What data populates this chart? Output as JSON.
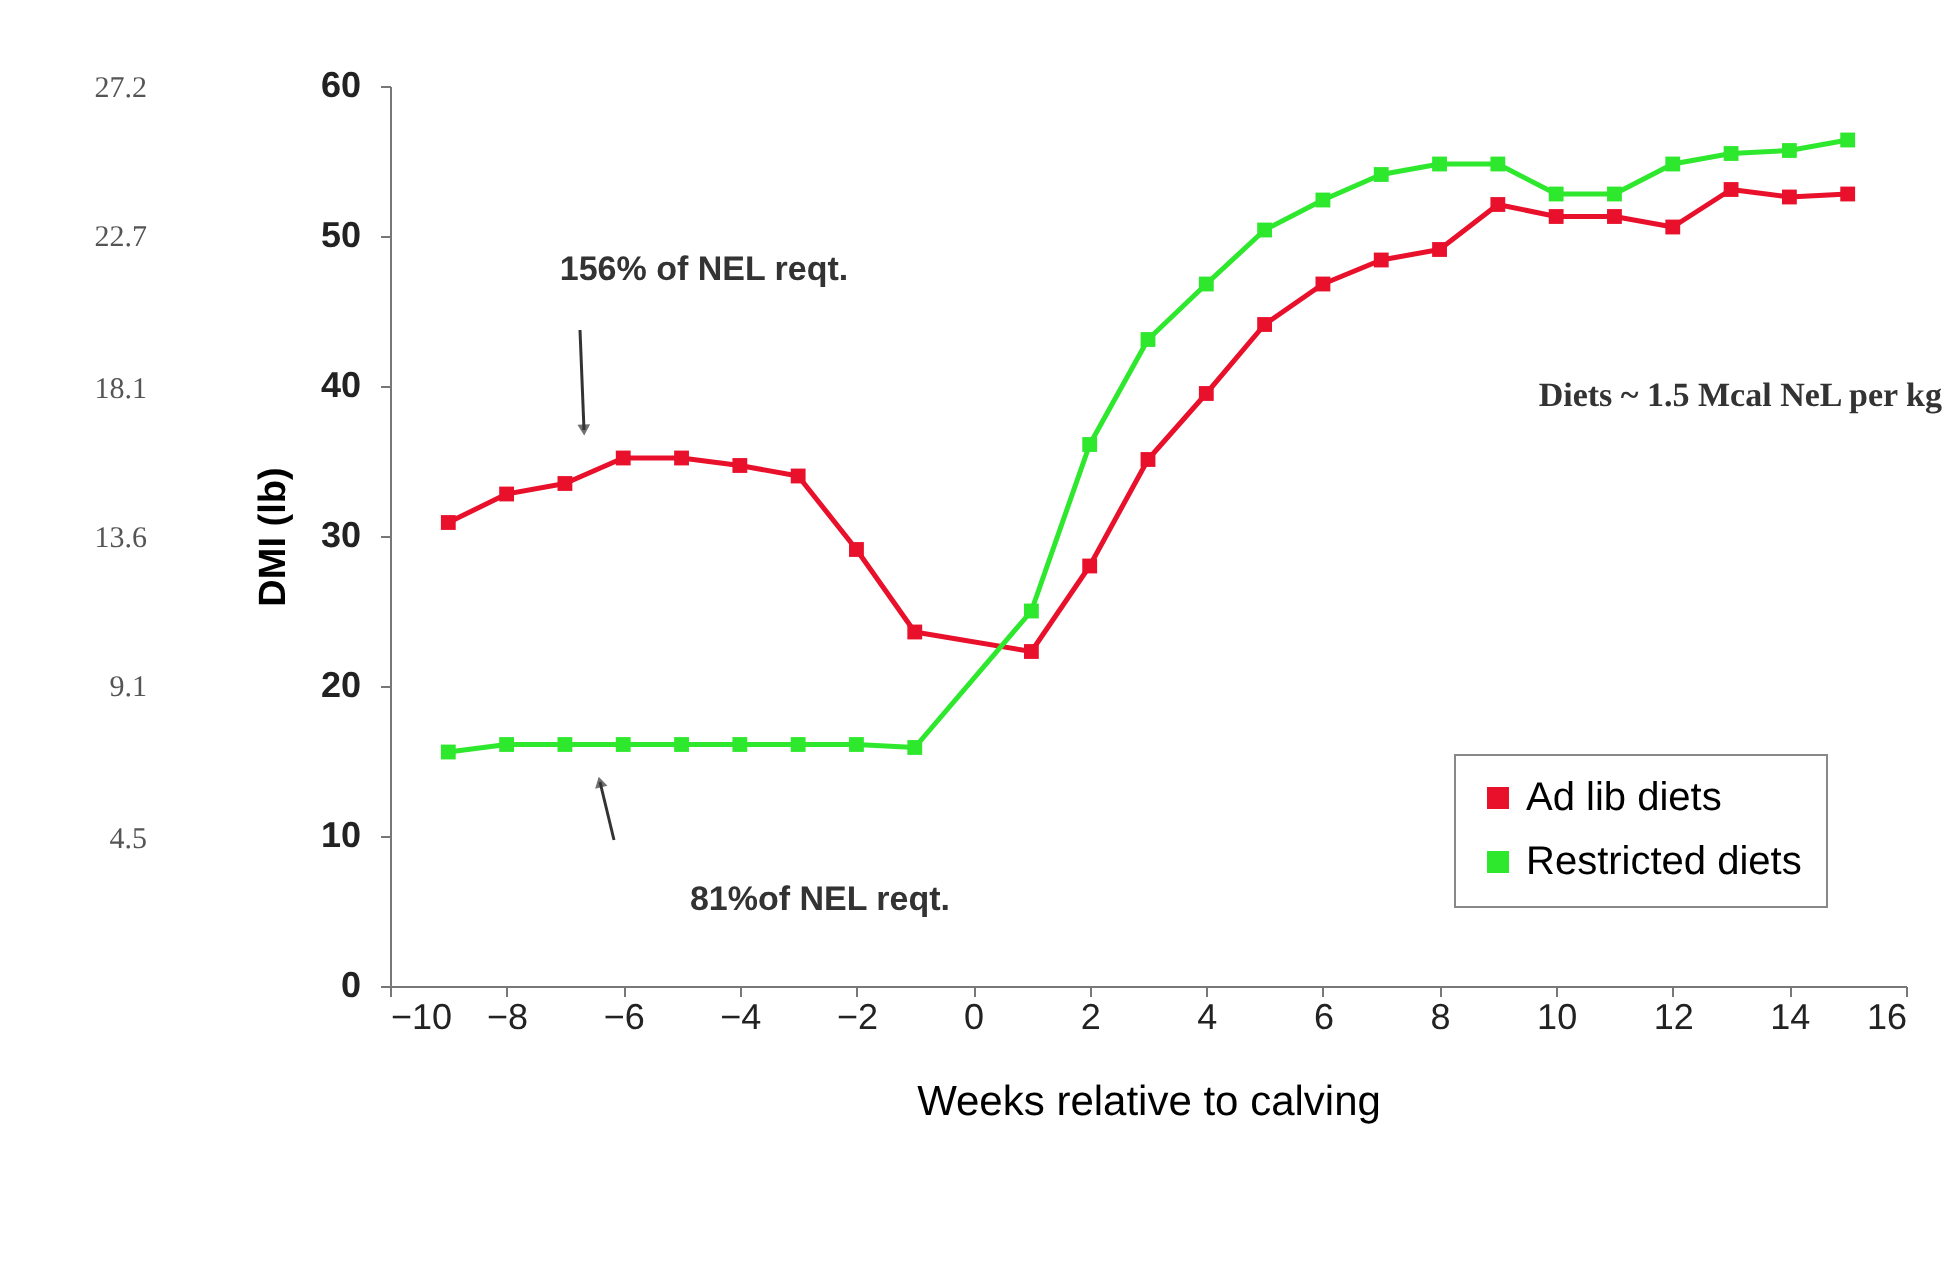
{
  "chart_data": {
    "type": "line",
    "xlabel": "Weeks relative to calving",
    "ylabel": "DMI (lb)",
    "x": [
      -9,
      -8,
      -7,
      -6,
      -5,
      -4,
      -3,
      -2,
      -1,
      1,
      2,
      3,
      4,
      5,
      6,
      7,
      8,
      9,
      10,
      11,
      12,
      13,
      14,
      15
    ],
    "series": [
      {
        "name": "Ad lib diets",
        "color": "#e8102a",
        "values": [
          30.9,
          32.8,
          33.5,
          35.2,
          35.2,
          34.7,
          34,
          29.1,
          23.6,
          22.3,
          28,
          35.1,
          39.5,
          44.1,
          46.8,
          48.4,
          49.1,
          52.1,
          51.3,
          51.3,
          50.6,
          53.1,
          52.6,
          52.8
        ]
      },
      {
        "name": "Restricted diets",
        "color": "#2ee82e",
        "values": [
          15.6,
          16.1,
          16.1,
          16.1,
          16.1,
          16.1,
          16.1,
          16.1,
          15.9,
          25,
          36.1,
          43.1,
          46.8,
          50.4,
          52.4,
          54.1,
          54.8,
          54.8,
          52.8,
          52.8,
          54.8,
          55.5,
          55.7,
          56.4
        ]
      }
    ],
    "xlim": [
      -10,
      16
    ],
    "xticks": [
      -10,
      -8,
      -6,
      -4,
      -2,
      0,
      2,
      4,
      6,
      8,
      10,
      12,
      14,
      16
    ],
    "ylim": [
      0,
      60
    ],
    "yticks": [
      0,
      10,
      20,
      30,
      40,
      50,
      60
    ],
    "y2lim": [
      0,
      27.2
    ],
    "y2ticks": [
      {
        "value": 4.5,
        "label": "4.5"
      },
      {
        "value": 9.1,
        "label": "9.1"
      },
      {
        "value": 13.6,
        "label": "13.6"
      },
      {
        "value": 18.1,
        "label": "18.1"
      },
      {
        "value": 22.7,
        "label": "22.7"
      },
      {
        "value": 27.2,
        "label": "27.2"
      }
    ],
    "annotations": [
      "156% of NEL reqt.",
      "81%of NEL reqt.",
      "Diets ~ 1.5 Mcal NeL per kg"
    ],
    "grid": false,
    "legend": "bottom right",
    "marker": "square",
    "line_style": "solid"
  }
}
